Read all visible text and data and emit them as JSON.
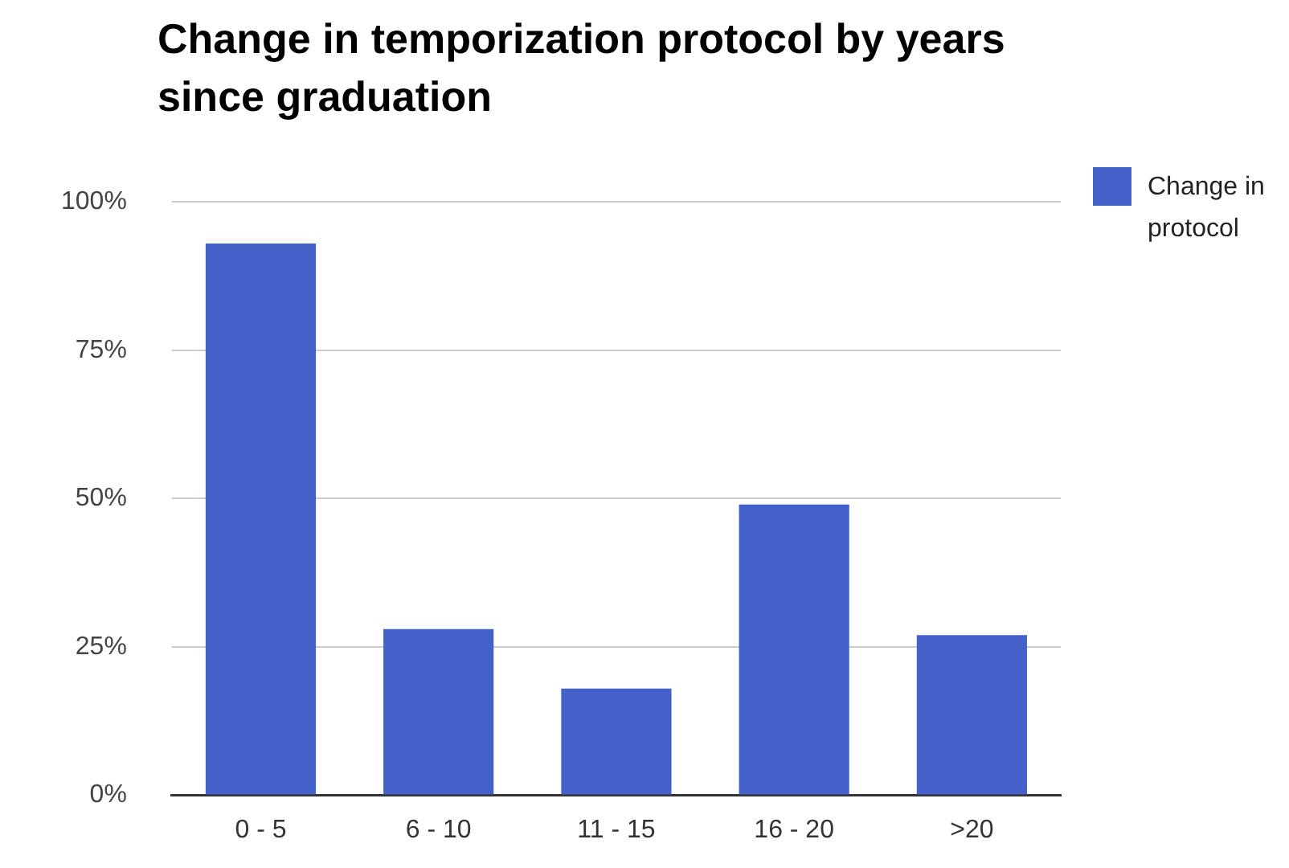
{
  "chart_data": {
    "type": "bar",
    "title": "Change in temporization protocol by years since graduation",
    "categories": [
      "0 - 5",
      "6 - 10",
      "11 - 15",
      "16 - 20",
      ">20"
    ],
    "series": [
      {
        "name": "Change in protocol",
        "color": "#4361c8",
        "values": [
          93,
          28,
          18,
          49,
          27
        ]
      }
    ],
    "ylim": [
      0,
      100
    ],
    "yticks": [
      {
        "value": 0,
        "label": "0%"
      },
      {
        "value": 25,
        "label": "25%"
      },
      {
        "value": 50,
        "label": "50%"
      },
      {
        "value": 75,
        "label": "75%"
      },
      {
        "value": 100,
        "label": "100%"
      }
    ],
    "grid": "y",
    "legend": "right"
  }
}
